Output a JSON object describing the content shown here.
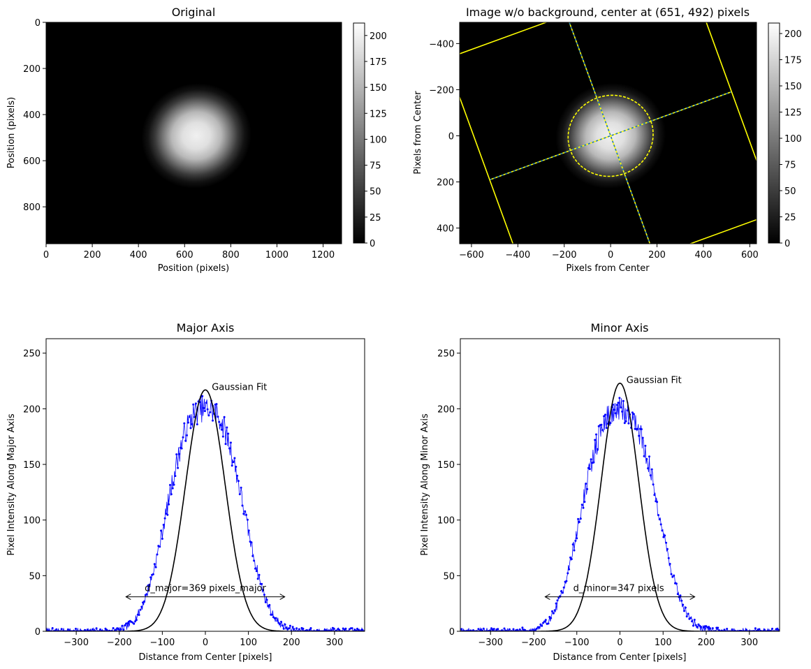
{
  "chart_data": [
    {
      "type": "heatmap",
      "title": "Original",
      "xlabel": "Position (pixels)",
      "ylabel": "Position (pixels)",
      "xlim": [
        0,
        1280
      ],
      "ylim": [
        960,
        0
      ],
      "xticks": [
        0,
        200,
        400,
        600,
        800,
        1000,
        1200
      ],
      "yticks": [
        0,
        200,
        400,
        600,
        800
      ],
      "colormap": "gray",
      "colorbar": {
        "vmin": 0,
        "vmax": 212,
        "ticks": [
          0,
          25,
          50,
          75,
          100,
          125,
          150,
          175,
          200
        ]
      },
      "blob": {
        "center": [
          651,
          492
        ],
        "peak": 200,
        "sigma_major": 92,
        "sigma_minor": 87,
        "angle_deg": -20
      }
    },
    {
      "type": "heatmap",
      "title": "Image w/o background, center at (651, 492) pixels",
      "xlabel": "Pixels from Center",
      "ylabel": "Pixels from Center",
      "xlim": [
        -651,
        629
      ],
      "ylim": [
        468,
        -492
      ],
      "xticks": [
        -600,
        -400,
        -200,
        0,
        200,
        400,
        600
      ],
      "yticks": [
        -400,
        -200,
        0,
        200,
        400
      ],
      "colormap": "gray",
      "colorbar": {
        "vmin": 0,
        "vmax": 210,
        "ticks": [
          0,
          25,
          50,
          75,
          100,
          125,
          150,
          175,
          200
        ]
      },
      "overlay": {
        "colors": [
          "#ffff00",
          "#1f77b4"
        ],
        "ellipse": {
          "semi_major": 184.5,
          "semi_minor": 173.5,
          "angle_deg": -20
        },
        "integration_box_half_width": 555
      }
    },
    {
      "type": "line",
      "title": "Major Axis",
      "xlabel": "Distance from Center [pixels]",
      "ylabel": "Pixel Intensity Along Major Axis",
      "xlim": [
        -370,
        370
      ],
      "ylim": [
        0,
        263
      ],
      "xticks": [
        -300,
        -200,
        -100,
        0,
        100,
        200,
        300
      ],
      "yticks": [
        0,
        50,
        100,
        150,
        200,
        250
      ],
      "series": [
        {
          "kind": "measured",
          "color": "#0000ff",
          "sigma": 92,
          "peak": 200,
          "seed": 7
        },
        {
          "kind": "fit",
          "color": "#000000",
          "peak": 217,
          "sigma": 92.25
        }
      ],
      "annotations": [
        {
          "text": "Gaussian Fit",
          "x": 15,
          "y": 217
        },
        {
          "text": "d_major=369 pixels_major",
          "x": 0,
          "y": 36,
          "arrow_from": -184.5,
          "arrow_to": 184.5,
          "arrow_y": 31
        }
      ]
    },
    {
      "type": "line",
      "title": "Minor Axis",
      "xlabel": "Distance from Center [pixels]",
      "ylabel": "Pixel Intensity Along Minor Axis",
      "xlim": [
        -370,
        370
      ],
      "ylim": [
        0,
        263
      ],
      "xticks": [
        -300,
        -200,
        -100,
        0,
        100,
        200,
        300
      ],
      "yticks": [
        0,
        50,
        100,
        150,
        200,
        250
      ],
      "series": [
        {
          "kind": "measured",
          "color": "#0000ff",
          "sigma": 92,
          "peak": 198,
          "seed": 19
        },
        {
          "kind": "fit",
          "color": "#000000",
          "peak": 223,
          "sigma": 86.75
        }
      ],
      "annotations": [
        {
          "text": "Gaussian Fit",
          "x": 15,
          "y": 223
        },
        {
          "text": "d_minor=347 pixels",
          "x": -3,
          "y": 36,
          "arrow_from": -173.5,
          "arrow_to": 173.5,
          "arrow_y": 31
        }
      ]
    }
  ]
}
